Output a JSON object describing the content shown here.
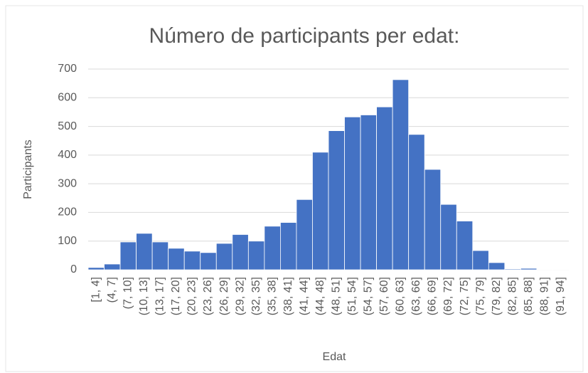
{
  "chart_data": {
    "type": "bar",
    "title": "Número de participants per edat:",
    "x_label": "Edat",
    "y_label": "Participants",
    "categories": [
      "[1, 4]",
      "(4, 7]",
      "(7, 10]",
      "(10, 13]",
      "(13, 17]",
      "(17, 20]",
      "(20, 23]",
      "(23, 26]",
      "(26, 29]",
      "(29, 32]",
      "(32, 35]",
      "(35, 38]",
      "(38, 41]",
      "(41, 44]",
      "(44, 48]",
      "(48, 51]",
      "(51, 54]",
      "(54, 57]",
      "(57, 60]",
      "(60, 63]",
      "(63, 66]",
      "(66, 69]",
      "(69, 72]",
      "(72, 75]",
      "(75, 79]",
      "(79, 82]",
      "(82, 85]",
      "(85, 88]",
      "(88, 91]",
      "(91, 94]"
    ],
    "values": [
      8,
      20,
      97,
      127,
      97,
      75,
      65,
      60,
      92,
      123,
      100,
      152,
      165,
      245,
      410,
      485,
      533,
      540,
      568,
      663,
      472,
      350,
      228,
      170,
      67,
      25,
      3,
      5,
      1,
      1
    ],
    "color": "#4472c4",
    "ylim": [
      0,
      700
    ],
    "yticks": [
      0,
      100,
      200,
      300,
      400,
      500,
      600,
      700
    ],
    "grid": true
  }
}
